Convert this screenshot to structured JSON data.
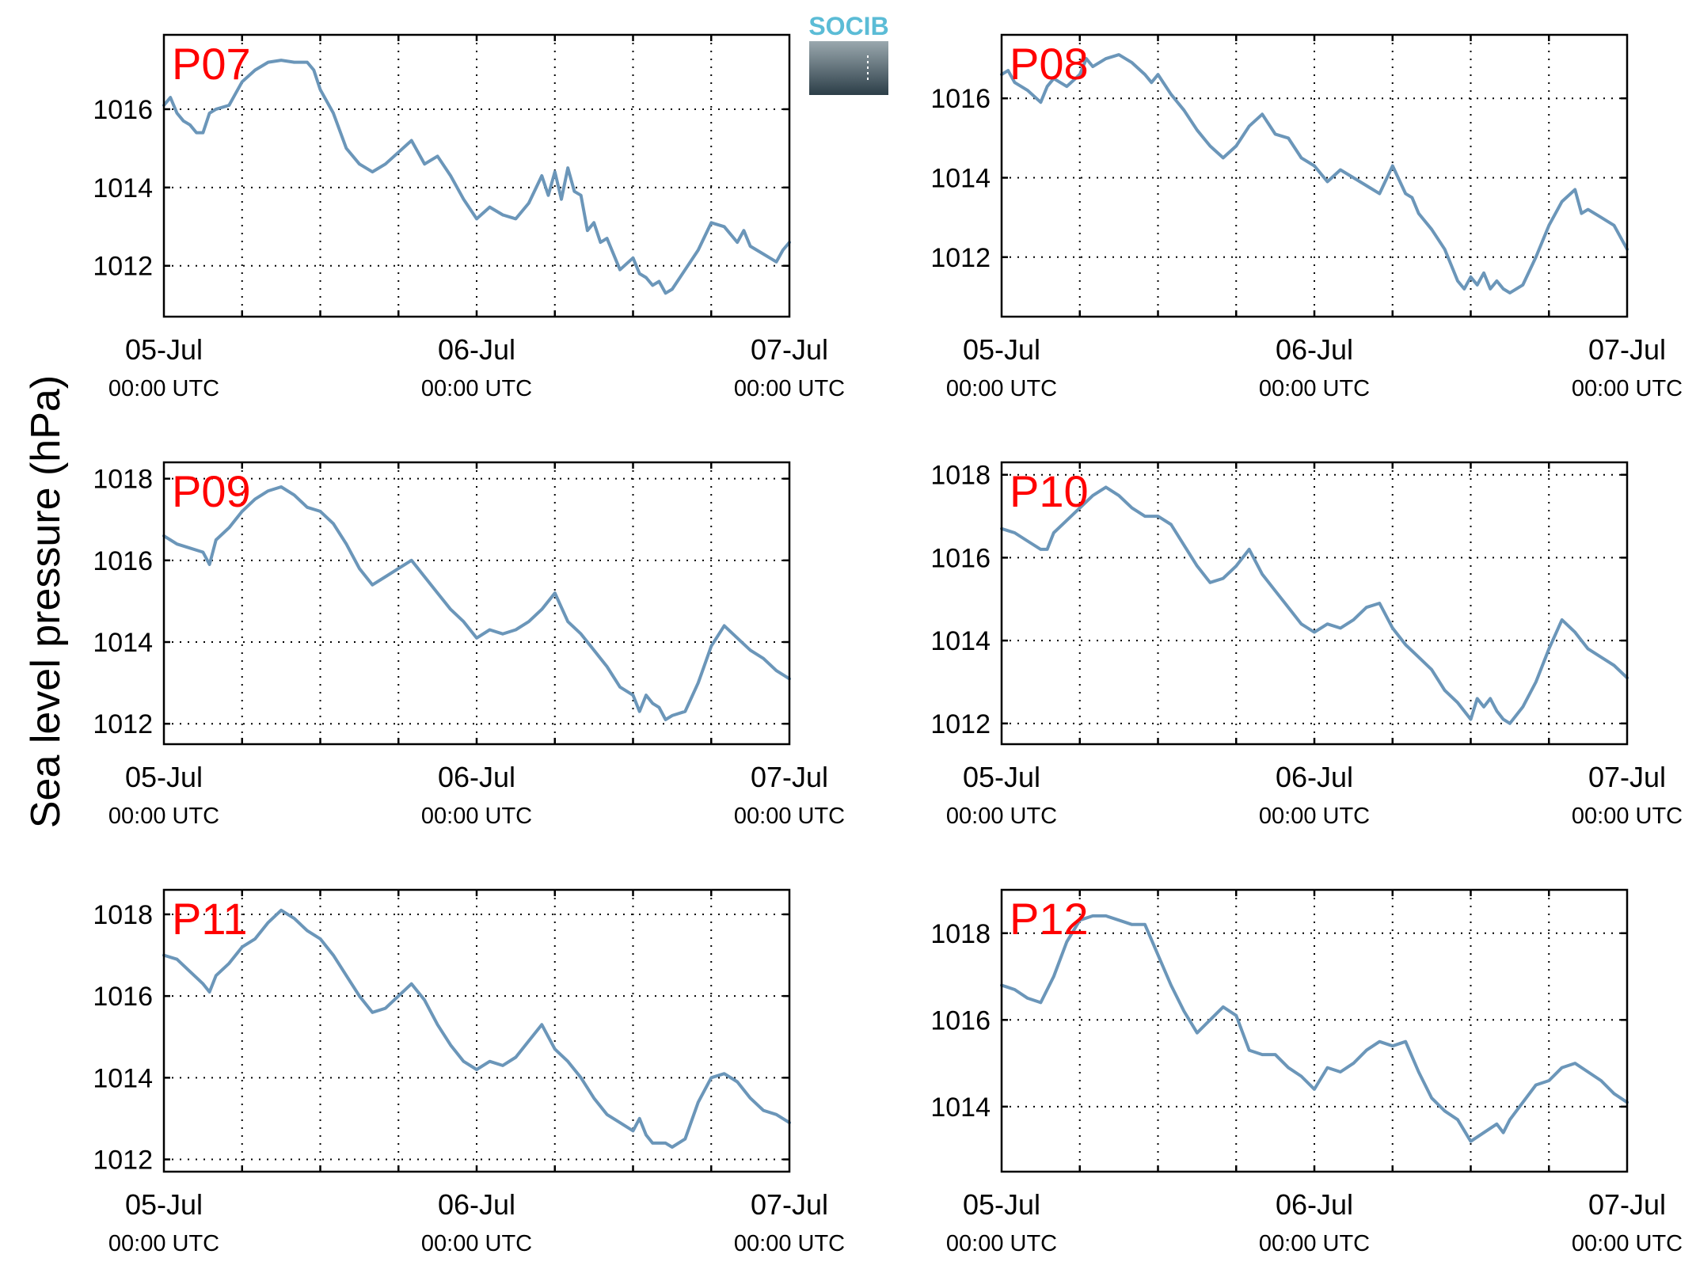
{
  "figure": {
    "ylabel": "Sea level pressure (hPa)",
    "logo": {
      "text": "SOCIB",
      "colors": {
        "text": "#5bbcd6",
        "top": "#8fa0a8",
        "bottom": "#2c3e48"
      }
    }
  },
  "colors": {
    "line": "#6b96b9",
    "station_label": "#ff0000"
  },
  "chart_data": [
    {
      "type": "line",
      "station": "P07",
      "x_ticks": [
        {
          "date": "05-Jul",
          "time": "00:00 UTC"
        },
        {
          "date": "06-Jul",
          "time": "00:00 UTC"
        },
        {
          "date": "07-Jul",
          "time": "00:00 UTC"
        }
      ],
      "x_range_hours": [
        0,
        48
      ],
      "ylim": [
        1010.7,
        1017.9
      ],
      "yticks": [
        1012,
        1014,
        1016
      ],
      "grid": true,
      "series": [
        {
          "x_hours": [
            0,
            0.5,
            1,
            1.5,
            2,
            2.5,
            3,
            3.5,
            4,
            5,
            5.5,
            6,
            7,
            8,
            9,
            10,
            11,
            11.5,
            12,
            13,
            14,
            15,
            16,
            17,
            18,
            19,
            20,
            21,
            22,
            22.5,
            23,
            24,
            25,
            26,
            27,
            28,
            29,
            29.5,
            30,
            30.5,
            31,
            31.5,
            32,
            32.5,
            33,
            33.5,
            34,
            35,
            36,
            36.5,
            37,
            37.5,
            38,
            38.5,
            39,
            40,
            41,
            42,
            43,
            44,
            44.5,
            45,
            46,
            46.5,
            47,
            47.5,
            48
          ],
          "values": [
            1016.1,
            1016.3,
            1015.9,
            1015.7,
            1015.6,
            1015.4,
            1015.4,
            1015.9,
            1016.0,
            1016.1,
            1016.4,
            1016.7,
            1017.0,
            1017.2,
            1017.25,
            1017.2,
            1017.2,
            1017.0,
            1016.5,
            1015.9,
            1015.0,
            1014.6,
            1014.4,
            1014.6,
            1014.9,
            1015.2,
            1014.6,
            1014.8,
            1014.3,
            1014.0,
            1013.7,
            1013.2,
            1013.5,
            1013.3,
            1013.2,
            1013.6,
            1014.3,
            1013.8,
            1014.4,
            1013.7,
            1014.5,
            1013.9,
            1013.8,
            1012.9,
            1013.1,
            1012.6,
            1012.7,
            1011.9,
            1012.2,
            1011.8,
            1011.7,
            1011.5,
            1011.6,
            1011.3,
            1011.4,
            1011.9,
            1012.4,
            1013.1,
            1013.0,
            1012.6,
            1012.9,
            1012.5,
            1012.3,
            1012.2,
            1012.1,
            1012.4,
            1012.6
          ]
        }
      ]
    },
    {
      "type": "line",
      "station": "P08",
      "x_ticks": [
        {
          "date": "05-Jul",
          "time": "00:00 UTC"
        },
        {
          "date": "06-Jul",
          "time": "00:00 UTC"
        },
        {
          "date": "07-Jul",
          "time": "00:00 UTC"
        }
      ],
      "x_range_hours": [
        0,
        48
      ],
      "ylim": [
        1010.5,
        1017.6
      ],
      "yticks": [
        1012,
        1014,
        1016
      ],
      "grid": true,
      "series": [
        {
          "x_hours": [
            0,
            0.5,
            1,
            2,
            3,
            3.5,
            4,
            5,
            6,
            6.5,
            7,
            8,
            9,
            10,
            11,
            11.5,
            12,
            13,
            14,
            15,
            16,
            17,
            18,
            19,
            20,
            21,
            22,
            23,
            24,
            25,
            26,
            27,
            28,
            29,
            30,
            31,
            31.5,
            32,
            33,
            34,
            34.5,
            35,
            35.5,
            36,
            36.5,
            37,
            37.5,
            38,
            38.5,
            39,
            40,
            41,
            42,
            43,
            44,
            44.5,
            45,
            46,
            47,
            48
          ],
          "values": [
            1016.6,
            1016.7,
            1016.4,
            1016.2,
            1015.9,
            1016.3,
            1016.5,
            1016.3,
            1016.6,
            1017.0,
            1016.8,
            1017.0,
            1017.1,
            1016.9,
            1016.6,
            1016.4,
            1016.6,
            1016.1,
            1015.7,
            1015.2,
            1014.8,
            1014.5,
            1014.8,
            1015.3,
            1015.6,
            1015.1,
            1015.0,
            1014.5,
            1014.3,
            1013.9,
            1014.2,
            1014.0,
            1013.8,
            1013.6,
            1014.3,
            1013.6,
            1013.5,
            1013.1,
            1012.7,
            1012.2,
            1011.8,
            1011.4,
            1011.2,
            1011.5,
            1011.3,
            1011.6,
            1011.2,
            1011.4,
            1011.2,
            1011.1,
            1011.3,
            1012.0,
            1012.8,
            1013.4,
            1013.7,
            1013.1,
            1013.2,
            1013.0,
            1012.8,
            1012.2
          ]
        }
      ]
    },
    {
      "type": "line",
      "station": "P09",
      "x_ticks": [
        {
          "date": "05-Jul",
          "time": "00:00 UTC"
        },
        {
          "date": "06-Jul",
          "time": "00:00 UTC"
        },
        {
          "date": "07-Jul",
          "time": "00:00 UTC"
        }
      ],
      "x_range_hours": [
        0,
        48
      ],
      "ylim": [
        1011.5,
        1018.4
      ],
      "yticks": [
        1012,
        1014,
        1016,
        1018
      ],
      "grid": true,
      "series": [
        {
          "x_hours": [
            0,
            0.5,
            1,
            2,
            3,
            3.5,
            4,
            5,
            6,
            7,
            8,
            9,
            10,
            11,
            12,
            13,
            14,
            15,
            16,
            17,
            18,
            19,
            20,
            21,
            22,
            23,
            24,
            25,
            26,
            27,
            28,
            29,
            30,
            31,
            32,
            33,
            34,
            35,
            36,
            36.5,
            37,
            37.5,
            38,
            38.5,
            39,
            40,
            41,
            42,
            43,
            44,
            45,
            46,
            47,
            48
          ],
          "values": [
            1016.6,
            1016.5,
            1016.4,
            1016.3,
            1016.2,
            1015.9,
            1016.5,
            1016.8,
            1017.2,
            1017.5,
            1017.7,
            1017.8,
            1017.6,
            1017.3,
            1017.2,
            1016.9,
            1016.4,
            1015.8,
            1015.4,
            1015.6,
            1015.8,
            1016.0,
            1015.6,
            1015.2,
            1014.8,
            1014.5,
            1014.1,
            1014.3,
            1014.2,
            1014.3,
            1014.5,
            1014.8,
            1015.2,
            1014.5,
            1014.2,
            1013.8,
            1013.4,
            1012.9,
            1012.7,
            1012.3,
            1012.7,
            1012.5,
            1012.4,
            1012.1,
            1012.2,
            1012.3,
            1013.0,
            1013.9,
            1014.4,
            1014.1,
            1013.8,
            1013.6,
            1013.3,
            1013.1
          ]
        }
      ]
    },
    {
      "type": "line",
      "station": "P10",
      "x_ticks": [
        {
          "date": "05-Jul",
          "time": "00:00 UTC"
        },
        {
          "date": "06-Jul",
          "time": "00:00 UTC"
        },
        {
          "date": "07-Jul",
          "time": "00:00 UTC"
        }
      ],
      "x_range_hours": [
        0,
        48
      ],
      "ylim": [
        1011.5,
        1018.3
      ],
      "yticks": [
        1012,
        1014,
        1016,
        1018
      ],
      "grid": true,
      "series": [
        {
          "x_hours": [
            0,
            1,
            2,
            3,
            3.5,
            4,
            5,
            6,
            7,
            8,
            9,
            10,
            11,
            12,
            13,
            14,
            15,
            16,
            17,
            18,
            19,
            20,
            21,
            22,
            23,
            24,
            25,
            26,
            27,
            28,
            29,
            30,
            31,
            32,
            33,
            34,
            35,
            36,
            36.5,
            37,
            37.5,
            38,
            38.5,
            39,
            40,
            41,
            42,
            43,
            44,
            45,
            46,
            47,
            48
          ],
          "values": [
            1016.7,
            1016.6,
            1016.4,
            1016.2,
            1016.2,
            1016.6,
            1016.9,
            1017.2,
            1017.5,
            1017.7,
            1017.5,
            1017.2,
            1017.0,
            1017.0,
            1016.8,
            1016.3,
            1015.8,
            1015.4,
            1015.5,
            1015.8,
            1016.2,
            1015.6,
            1015.2,
            1014.8,
            1014.4,
            1014.2,
            1014.4,
            1014.3,
            1014.5,
            1014.8,
            1014.9,
            1014.3,
            1013.9,
            1013.6,
            1013.3,
            1012.8,
            1012.5,
            1012.1,
            1012.6,
            1012.4,
            1012.6,
            1012.3,
            1012.1,
            1012.0,
            1012.4,
            1013.0,
            1013.8,
            1014.5,
            1014.2,
            1013.8,
            1013.6,
            1013.4,
            1013.1
          ]
        }
      ]
    },
    {
      "type": "line",
      "station": "P11",
      "x_ticks": [
        {
          "date": "05-Jul",
          "time": "00:00 UTC"
        },
        {
          "date": "06-Jul",
          "time": "00:00 UTC"
        },
        {
          "date": "07-Jul",
          "time": "00:00 UTC"
        }
      ],
      "x_range_hours": [
        0,
        48
      ],
      "ylim": [
        1011.7,
        1018.6
      ],
      "yticks": [
        1012,
        1014,
        1016,
        1018
      ],
      "grid": true,
      "series": [
        {
          "x_hours": [
            0,
            1,
            2,
            3,
            3.5,
            4,
            5,
            6,
            7,
            8,
            9,
            10,
            11,
            12,
            13,
            14,
            15,
            16,
            17,
            18,
            19,
            20,
            21,
            22,
            23,
            24,
            25,
            26,
            27,
            28,
            29,
            30,
            31,
            32,
            33,
            34,
            35,
            36,
            36.5,
            37,
            37.5,
            38,
            38.5,
            39,
            40,
            41,
            42,
            43,
            44,
            45,
            46,
            47,
            48
          ],
          "values": [
            1017.0,
            1016.9,
            1016.6,
            1016.3,
            1016.1,
            1016.5,
            1016.8,
            1017.2,
            1017.4,
            1017.8,
            1018.1,
            1017.9,
            1017.6,
            1017.4,
            1017.0,
            1016.5,
            1016.0,
            1015.6,
            1015.7,
            1016.0,
            1016.3,
            1015.9,
            1015.3,
            1014.8,
            1014.4,
            1014.2,
            1014.4,
            1014.3,
            1014.5,
            1014.9,
            1015.3,
            1014.7,
            1014.4,
            1014.0,
            1013.5,
            1013.1,
            1012.9,
            1012.7,
            1013.0,
            1012.6,
            1012.4,
            1012.4,
            1012.4,
            1012.3,
            1012.5,
            1013.4,
            1014.0,
            1014.1,
            1013.9,
            1013.5,
            1013.2,
            1013.1,
            1012.9
          ]
        }
      ]
    },
    {
      "type": "line",
      "station": "P12",
      "x_ticks": [
        {
          "date": "05-Jul",
          "time": "00:00 UTC"
        },
        {
          "date": "06-Jul",
          "time": "00:00 UTC"
        },
        {
          "date": "07-Jul",
          "time": "00:00 UTC"
        }
      ],
      "x_range_hours": [
        0,
        48
      ],
      "ylim": [
        1012.5,
        1019.0
      ],
      "yticks": [
        1014,
        1016,
        1018
      ],
      "grid": true,
      "series": [
        {
          "x_hours": [
            0,
            1,
            2,
            3,
            4,
            5,
            6,
            7,
            8,
            9,
            10,
            11,
            12,
            13,
            14,
            15,
            16,
            17,
            18,
            19,
            20,
            21,
            22,
            23,
            24,
            25,
            26,
            27,
            28,
            29,
            30,
            31,
            32,
            33,
            34,
            35,
            36,
            37,
            38,
            38.5,
            39,
            40,
            41,
            42,
            43,
            44,
            45,
            46,
            47,
            48
          ],
          "values": [
            1016.8,
            1016.7,
            1016.5,
            1016.4,
            1017.0,
            1017.8,
            1018.3,
            1018.4,
            1018.4,
            1018.3,
            1018.2,
            1018.2,
            1017.5,
            1016.8,
            1016.2,
            1015.7,
            1016.0,
            1016.3,
            1016.1,
            1015.3,
            1015.2,
            1015.2,
            1014.9,
            1014.7,
            1014.4,
            1014.9,
            1014.8,
            1015.0,
            1015.3,
            1015.5,
            1015.4,
            1015.5,
            1014.8,
            1014.2,
            1013.9,
            1013.7,
            1013.2,
            1013.4,
            1013.6,
            1013.4,
            1013.7,
            1014.1,
            1014.5,
            1014.6,
            1014.9,
            1015.0,
            1014.8,
            1014.6,
            1014.3,
            1014.1
          ]
        }
      ]
    }
  ]
}
